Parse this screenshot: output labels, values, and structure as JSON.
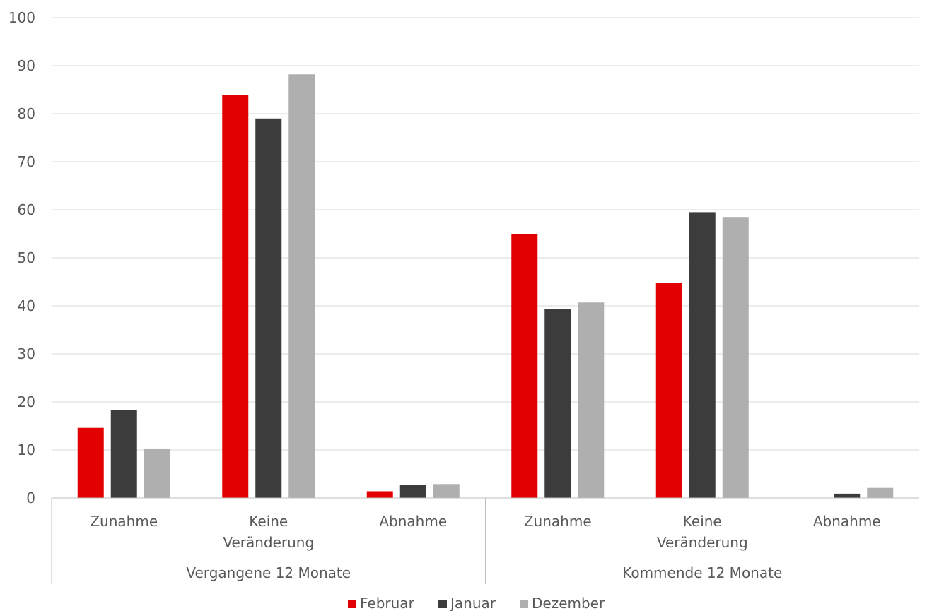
{
  "chart_data": {
    "type": "bar",
    "title": "",
    "xlabel": "",
    "ylabel": "",
    "ylim": [
      0,
      100
    ],
    "yticks": [
      0,
      10,
      20,
      30,
      40,
      50,
      60,
      70,
      80,
      90,
      100
    ],
    "grid": true,
    "legend_position": "bottom",
    "groups": [
      {
        "label": "Vergangene 12 Monate",
        "categories": [
          [
            "Zunahme"
          ],
          [
            "Keine",
            "Veränderung"
          ],
          [
            "Abnahme"
          ]
        ]
      },
      {
        "label": "Kommende 12 Monate",
        "categories": [
          [
            "Zunahme"
          ],
          [
            "Keine",
            "Veränderung"
          ],
          [
            "Abnahme"
          ]
        ]
      }
    ],
    "series": [
      {
        "name": "Februar",
        "color": "#e30000",
        "values": [
          14.6,
          83.9,
          1.4,
          55.0,
          44.8,
          0
        ]
      },
      {
        "name": "Januar",
        "color": "#3c3c3c",
        "values": [
          18.3,
          79.0,
          2.7,
          39.3,
          59.5,
          0.9
        ]
      },
      {
        "name": "Dezember",
        "color": "#afafaf",
        "values": [
          10.3,
          88.2,
          2.9,
          40.7,
          58.5,
          2.1
        ]
      }
    ]
  }
}
